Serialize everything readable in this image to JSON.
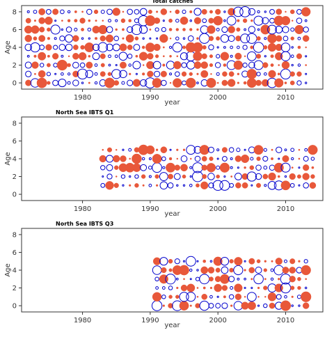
{
  "colors": {
    "negative": "#e8583a",
    "positive": "#0000cc",
    "frame": "#333333"
  },
  "chart_data": [
    {
      "type": "scatter",
      "subtype": "bubble",
      "title": "Total catches",
      "xlabel": "year",
      "ylabel": "Age",
      "xlim": [
        1971,
        2015.5
      ],
      "ylim": [
        -0.7,
        8.7
      ],
      "xticks": [
        1980,
        1990,
        2000,
        2010
      ],
      "yticks": [
        0,
        2,
        4,
        6,
        8
      ],
      "years": [
        1972,
        2013
      ],
      "ages": [
        0,
        8
      ],
      "encoding": "filled red = negative residual, open blue = positive residual, size = magnitude"
    },
    {
      "type": "scatter",
      "subtype": "bubble",
      "title": "North Sea IBTS Q1",
      "xlabel": "year",
      "ylabel": "Age",
      "xlim": [
        1971,
        2015.5
      ],
      "ylim": [
        -0.7,
        8.7
      ],
      "xticks": [
        1980,
        1990,
        2000,
        2010
      ],
      "yticks": [
        0,
        2,
        4,
        6,
        8
      ],
      "years": [
        1983,
        2014
      ],
      "ages": [
        1,
        5
      ],
      "encoding": "filled red = negative residual, open blue = positive residual, size = magnitude"
    },
    {
      "type": "scatter",
      "subtype": "bubble",
      "title": "North Sea IBTS Q3",
      "xlabel": "year",
      "ylabel": "Age",
      "xlim": [
        1971,
        2015.5
      ],
      "ylim": [
        -0.7,
        8.7
      ],
      "xticks": [
        1980,
        1990,
        2000,
        2010
      ],
      "yticks": [
        0,
        2,
        4,
        6,
        8
      ],
      "years": [
        1991,
        2013
      ],
      "ages": [
        0,
        5
      ],
      "encoding": "filled red = negative residual, open blue = positive residual, size = magnitude"
    }
  ]
}
